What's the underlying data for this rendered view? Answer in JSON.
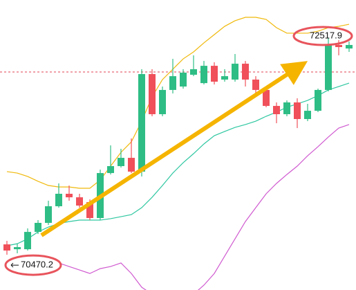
{
  "chart_data": {
    "type": "candlestick",
    "ylim": [
      70232,
      72863
    ],
    "up_color": "#2ebd85",
    "down_color": "#f0505a",
    "open": [
      70646,
      70602,
      70602,
      70759,
      70841,
      70992,
      71105,
      71073,
      71029,
      70885,
      71293,
      71356,
      71431,
      71306,
      72191,
      71827,
      72047,
      72078,
      72185,
      72109,
      72266,
      72141,
      72141,
      72285,
      72141,
      72047,
      71902,
      71827,
      71934,
      71783,
      71858,
      72047,
      72455,
      72423
    ],
    "high": [
      70678,
      70652,
      70791,
      70866,
      71042,
      71199,
      71180,
      71105,
      71054,
      71324,
      71544,
      71513,
      71607,
      72235,
      72235,
      72078,
      72329,
      72235,
      72361,
      72310,
      72298,
      72235,
      72373,
      72310,
      72172,
      72078,
      71934,
      71952,
      71971,
      71921,
      72059,
      72518,
      72499,
      72486
    ],
    "low": [
      70552,
      70565,
      70590,
      70740,
      70822,
      70979,
      71042,
      70979,
      70866,
      70866,
      71280,
      71343,
      71293,
      71262,
      71808,
      71808,
      72015,
      72059,
      72172,
      72097,
      72097,
      72122,
      72122,
      72078,
      72015,
      71890,
      71745,
      71808,
      71701,
      71764,
      71846,
      72034,
      72361,
      72392
    ],
    "close": [
      70590,
      70621,
      70759,
      70841,
      70992,
      71105,
      71073,
      70998,
      70885,
      71293,
      71356,
      71431,
      71306,
      72191,
      71827,
      72047,
      72172,
      72204,
      72235,
      72266,
      72122,
      72172,
      72285,
      72141,
      72047,
      71902,
      71827,
      71934,
      71783,
      71858,
      72047,
      72455,
      72436,
      72455
    ],
    "series": [
      {
        "color": "#f0b90b",
        "values": [
          71306,
          71293,
          71262,
          71218,
          71180,
          71167,
          71167,
          71155,
          71155,
          71230,
          71356,
          71481,
          71576,
          71764,
          71984,
          72141,
          72235,
          72329,
          72392,
          72474,
          72549,
          72624,
          72675,
          72706,
          72706,
          72687,
          72612,
          72562,
          72562,
          72562,
          72580,
          72612,
          72624,
          72643
        ]
      },
      {
        "color": "#2ec7a0",
        "values": [
          70634,
          70652,
          70696,
          70759,
          70803,
          70835,
          70853,
          70866,
          70866,
          70866,
          70879,
          70897,
          70916,
          70979,
          71073,
          71180,
          71293,
          71387,
          71469,
          71557,
          71632,
          71670,
          71707,
          71733,
          71764,
          71808,
          71846,
          71890,
          71921,
          71952,
          71996,
          72047,
          72078,
          72109
        ]
      },
      {
        "color": "#d05ad0",
        "values": [
          70489,
          70489,
          70489,
          70489,
          70489,
          70477,
          70445,
          70414,
          70382,
          70426,
          70445,
          70477,
          70382,
          70257,
          70194,
          70163,
          70150,
          70163,
          70194,
          70276,
          70382,
          70539,
          70696,
          70853,
          70979,
          71105,
          71199,
          71280,
          71356,
          71450,
          71532,
          71620,
          71701,
          71733
        ]
      }
    ],
    "price_line": 72210,
    "price_labels": [
      72517.9,
      70470.2
    ]
  }
}
